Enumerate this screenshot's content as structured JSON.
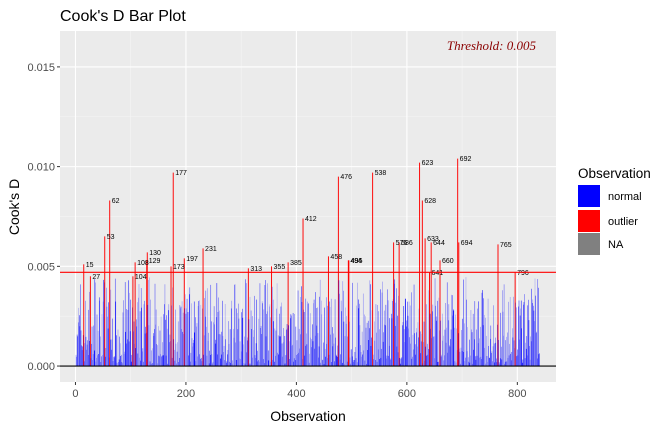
{
  "chart_data": {
    "type": "bar",
    "title": "Cook's D Bar Plot",
    "xlabel": "Observation",
    "ylabel": "Cook's D",
    "xlim": [
      -28,
      870
    ],
    "ylim": [
      -0.0008,
      0.0168
    ],
    "x_ticks": [
      0,
      200,
      400,
      600,
      800
    ],
    "y_ticks": [
      0.0,
      0.005,
      0.01,
      0.015
    ],
    "x_tick_labels": [
      "0",
      "200",
      "400",
      "600",
      "800"
    ],
    "y_tick_labels": [
      "0.000",
      "0.005",
      "0.010",
      "0.015"
    ],
    "threshold": 0.0047,
    "threshold_label": "Threshold: 0.005",
    "threshold_color": "#ff0000",
    "threshold_label_color": "#8b0000",
    "grid": true,
    "panel_color": "#ebebeb",
    "legend": {
      "title": "Observation",
      "position": "right",
      "items": [
        {
          "label": "normal",
          "color": "#0000ff"
        },
        {
          "label": "outlier",
          "color": "#ff0000"
        },
        {
          "label": "NA",
          "color": "#808080"
        }
      ]
    },
    "outliers": [
      {
        "x": 15,
        "y": 0.0051,
        "label": "15"
      },
      {
        "x": 27,
        "y": 0.0045,
        "label": "27"
      },
      {
        "x": 53,
        "y": 0.0065,
        "label": "53"
      },
      {
        "x": 62,
        "y": 0.0083,
        "label": "62"
      },
      {
        "x": 104,
        "y": 0.0045,
        "label": "104"
      },
      {
        "x": 108,
        "y": 0.0052,
        "label": "108"
      },
      {
        "x": 129,
        "y": 0.0053,
        "label": "129"
      },
      {
        "x": 130,
        "y": 0.0057,
        "label": "130"
      },
      {
        "x": 173,
        "y": 0.005,
        "label": "173"
      },
      {
        "x": 177,
        "y": 0.0097,
        "label": "177"
      },
      {
        "x": 197,
        "y": 0.0054,
        "label": "197"
      },
      {
        "x": 231,
        "y": 0.0059,
        "label": "231"
      },
      {
        "x": 313,
        "y": 0.0049,
        "label": "313"
      },
      {
        "x": 355,
        "y": 0.005,
        "label": "355"
      },
      {
        "x": 385,
        "y": 0.0052,
        "label": "385"
      },
      {
        "x": 412,
        "y": 0.0074,
        "label": "412"
      },
      {
        "x": 458,
        "y": 0.0055,
        "label": "458"
      },
      {
        "x": 476,
        "y": 0.0095,
        "label": "476"
      },
      {
        "x": 494,
        "y": 0.0053,
        "label": "494"
      },
      {
        "x": 495,
        "y": 0.0053,
        "label": "495"
      },
      {
        "x": 538,
        "y": 0.0097,
        "label": "538"
      },
      {
        "x": 576,
        "y": 0.0062,
        "label": "576"
      },
      {
        "x": 586,
        "y": 0.0062,
        "label": "586"
      },
      {
        "x": 623,
        "y": 0.0102,
        "label": "623"
      },
      {
        "x": 628,
        "y": 0.0083,
        "label": "628"
      },
      {
        "x": 633,
        "y": 0.0064,
        "label": "633"
      },
      {
        "x": 641,
        "y": 0.0047,
        "label": "641"
      },
      {
        "x": 644,
        "y": 0.0062,
        "label": "644"
      },
      {
        "x": 660,
        "y": 0.0053,
        "label": "660"
      },
      {
        "x": 692,
        "y": 0.0104,
        "label": "692"
      },
      {
        "x": 694,
        "y": 0.0062,
        "label": "694"
      },
      {
        "x": 765,
        "y": 0.0061,
        "label": "765"
      },
      {
        "x": 796,
        "y": 0.0047,
        "label": "796"
      }
    ]
  }
}
